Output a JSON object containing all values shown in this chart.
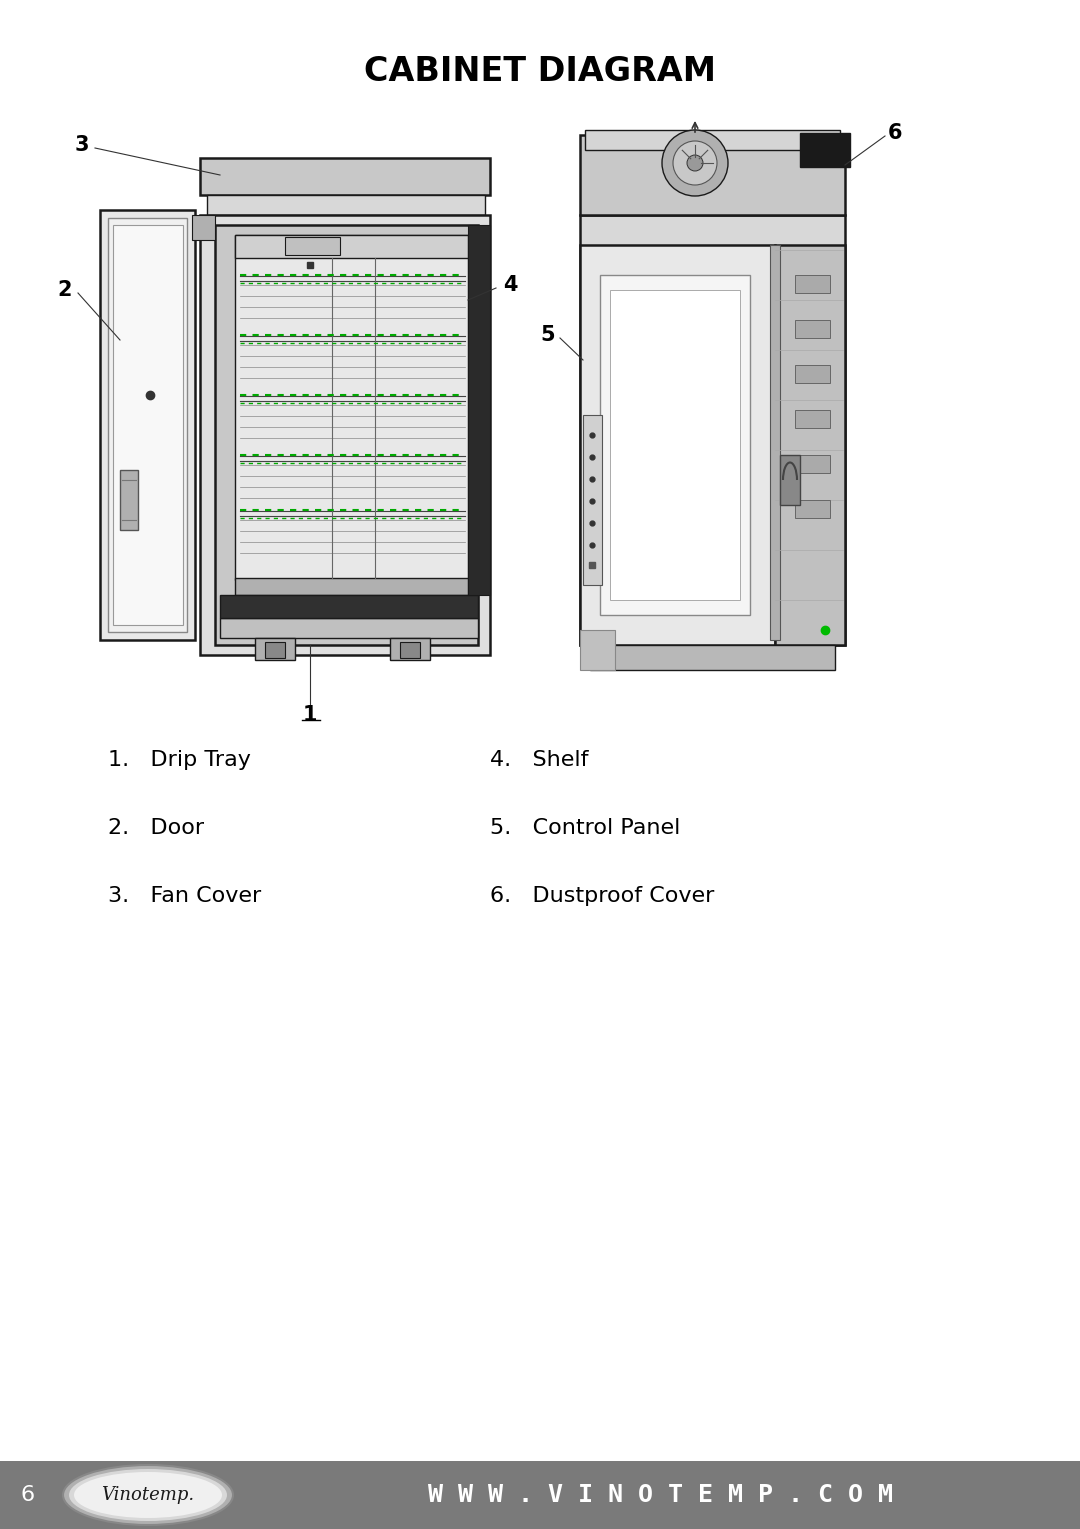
{
  "title": "CABINET DIAGRAM",
  "title_fontsize": 24,
  "title_fontweight": "bold",
  "background_color": "#ffffff",
  "footer_bg_color": "#7a7a7a",
  "footer_text": "W W W . V I N O T E M P . C O M",
  "footer_page_num": "6",
  "footer_text_color": "#ffffff",
  "footer_fontsize": 18,
  "list_items_left": [
    "1.   Drip Tray",
    "2.   Door",
    "3.   Fan Cover"
  ],
  "list_items_right": [
    "4.   Shelf",
    "5.   Control Panel",
    "6.   Dustproof Cover"
  ],
  "list_fontsize": 16,
  "label_color": "#000000",
  "label_fontsize": 15
}
